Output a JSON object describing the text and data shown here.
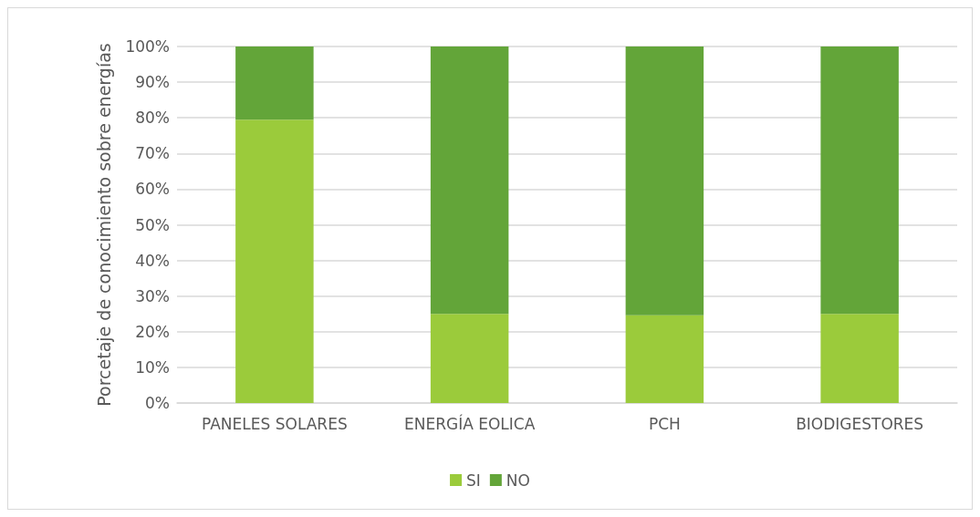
{
  "chart_data": {
    "type": "bar",
    "stacked": true,
    "ylabel": "Porcetaje de conocimiento sobre energías",
    "categories": [
      "PANELES SOLARES",
      "ENERGÍA EOLICA",
      "PCH",
      "BIODIGESTORES"
    ],
    "series": [
      {
        "name": "SI",
        "color": "#9bcb3b",
        "values": [
          79.5,
          25,
          24.6,
          25
        ]
      },
      {
        "name": "NO",
        "color": "#63a539",
        "values": [
          20.5,
          75,
          75.4,
          75
        ]
      }
    ],
    "ylim": [
      0,
      100
    ],
    "yticks": [
      {
        "value": 0,
        "label": "0%"
      },
      {
        "value": 10,
        "label": "10%"
      },
      {
        "value": 20,
        "label": "20%"
      },
      {
        "value": 30,
        "label": "30%"
      },
      {
        "value": 40,
        "label": "40%"
      },
      {
        "value": 50,
        "label": "50%"
      },
      {
        "value": 60,
        "label": "60%"
      },
      {
        "value": 70,
        "label": "70%"
      },
      {
        "value": 80,
        "label": "80%"
      },
      {
        "value": 90,
        "label": "90%"
      },
      {
        "value": 100,
        "label": "100%"
      }
    ],
    "grid": "y",
    "legend": "bottom"
  }
}
